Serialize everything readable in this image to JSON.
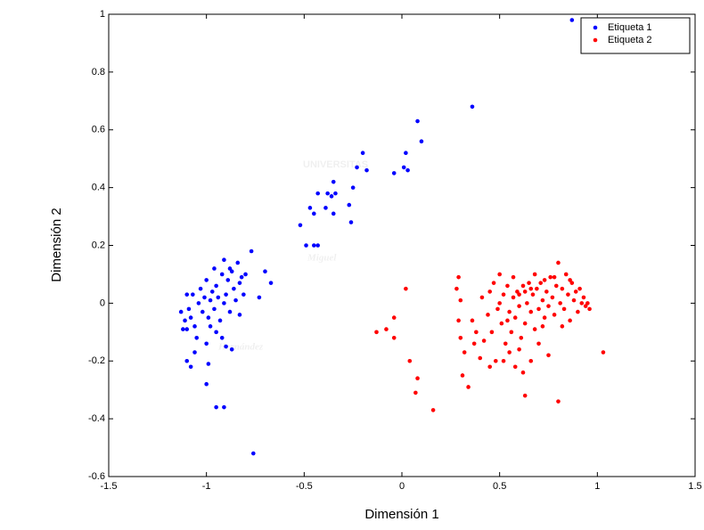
{
  "chart_data": {
    "type": "scatter",
    "xlabel": "Dimensión 1",
    "ylabel": "Dimensión 2",
    "watermark": [
      "UNIVERSITAS",
      "Miguel",
      "Hernández"
    ],
    "xlim": [
      -1.5,
      1.5
    ],
    "xticks": [
      -1.5,
      -1,
      -0.5,
      0,
      0.5,
      1,
      1.5
    ],
    "ylim": [
      -0.6,
      1
    ],
    "yticks": [
      -0.6,
      -0.4,
      -0.2,
      0,
      0.2,
      0.4,
      0.6,
      0.8,
      1
    ],
    "grid": false,
    "legend": "upper right",
    "series": [
      {
        "name": "Etiqueta 1",
        "color": "#0000ff",
        "x": [
          -1.13,
          -1.12,
          -1.11,
          -1.1,
          -1.09,
          -1.08,
          -1.07,
          -1.06,
          -1.05,
          -1.04,
          -1.03,
          -1.02,
          -1.01,
          -1.0,
          -0.99,
          -0.98,
          -0.97,
          -0.96,
          -0.95,
          -0.94,
          -0.93,
          -0.92,
          -0.91,
          -0.9,
          -0.89,
          -0.88,
          -0.87,
          -0.86,
          -0.85,
          -0.84,
          -0.83,
          -0.82,
          -0.81,
          -0.8,
          -1.06,
          -0.95,
          -0.92,
          -1.0,
          -0.98,
          -1.1,
          -0.96,
          -0.91,
          -0.88,
          -0.83,
          -0.9,
          -0.87,
          -0.99,
          -1.0,
          -1.08,
          -1.1,
          -0.95,
          -0.91,
          -0.76,
          -0.77,
          -0.7,
          -0.67,
          -0.73,
          -0.52,
          -0.49,
          -0.45,
          -0.43,
          -0.47,
          -0.45,
          -0.43,
          -0.39,
          -0.38,
          -0.36,
          -0.35,
          -0.34,
          -0.35,
          -0.27,
          -0.26,
          -0.25,
          -0.23,
          -0.2,
          -0.18,
          -0.04,
          0.01,
          0.02,
          0.03,
          0.08,
          0.1,
          0.36,
          0.87
        ],
        "values": [
          -0.03,
          -0.09,
          -0.06,
          -0.09,
          -0.02,
          -0.05,
          0.03,
          -0.08,
          -0.12,
          0.0,
          0.05,
          -0.03,
          0.02,
          0.08,
          -0.05,
          0.01,
          0.04,
          -0.02,
          0.06,
          0.02,
          -0.06,
          0.1,
          0.0,
          0.03,
          0.08,
          -0.03,
          0.11,
          0.05,
          0.01,
          0.14,
          0.07,
          0.09,
          0.03,
          0.1,
          -0.17,
          -0.1,
          -0.12,
          -0.14,
          -0.08,
          0.03,
          0.12,
          0.15,
          0.12,
          -0.04,
          -0.15,
          -0.16,
          -0.21,
          -0.28,
          -0.22,
          -0.2,
          -0.36,
          -0.36,
          -0.52,
          0.18,
          0.11,
          0.07,
          0.02,
          0.27,
          0.2,
          0.2,
          0.2,
          0.33,
          0.31,
          0.38,
          0.33,
          0.38,
          0.37,
          0.42,
          0.38,
          0.31,
          0.34,
          0.28,
          0.4,
          0.47,
          0.52,
          0.46,
          0.45,
          0.47,
          0.52,
          0.46,
          0.63,
          0.56,
          0.68,
          0.98
        ]
      },
      {
        "name": "Etiqueta 2",
        "color": "#ff0000",
        "x": [
          1.03,
          0.8,
          0.63,
          0.34,
          0.16,
          0.07,
          0.08,
          0.04,
          -0.08,
          -0.13,
          -0.04,
          -0.04,
          0.02,
          0.29,
          0.28,
          0.3,
          0.29,
          0.3,
          0.32,
          0.31,
          0.36,
          0.38,
          0.4,
          0.42,
          0.44,
          0.45,
          0.46,
          0.47,
          0.48,
          0.49,
          0.5,
          0.51,
          0.52,
          0.53,
          0.54,
          0.55,
          0.56,
          0.57,
          0.58,
          0.59,
          0.6,
          0.61,
          0.62,
          0.63,
          0.64,
          0.65,
          0.66,
          0.67,
          0.68,
          0.69,
          0.7,
          0.71,
          0.72,
          0.73,
          0.74,
          0.75,
          0.76,
          0.77,
          0.78,
          0.79,
          0.8,
          0.81,
          0.82,
          0.83,
          0.84,
          0.85,
          0.86,
          0.87,
          0.88,
          0.89,
          0.9,
          0.91,
          0.92,
          0.93,
          0.94,
          0.95,
          0.96,
          0.55,
          0.58,
          0.6,
          0.66,
          0.7,
          0.75,
          0.52,
          0.57,
          0.62,
          0.68,
          0.72,
          0.78,
          0.45,
          0.5,
          0.41,
          0.37,
          0.66,
          0.54,
          0.6,
          0.73,
          0.63,
          0.82,
          0.86
        ],
        "values": [
          -0.17,
          -0.34,
          -0.32,
          -0.29,
          -0.37,
          -0.31,
          -0.26,
          -0.2,
          -0.09,
          -0.1,
          -0.12,
          -0.05,
          0.05,
          0.09,
          0.05,
          0.01,
          -0.06,
          -0.12,
          -0.17,
          -0.25,
          -0.06,
          -0.1,
          -0.19,
          -0.13,
          -0.04,
          0.04,
          -0.1,
          0.07,
          -0.2,
          -0.02,
          0.0,
          -0.07,
          0.03,
          -0.14,
          0.06,
          -0.03,
          -0.1,
          0.02,
          -0.05,
          0.04,
          -0.01,
          -0.12,
          0.06,
          -0.07,
          0.0,
          0.07,
          -0.03,
          0.03,
          -0.09,
          0.05,
          -0.02,
          0.07,
          0.01,
          -0.05,
          0.04,
          -0.01,
          0.09,
          0.02,
          -0.04,
          0.06,
          0.14,
          0.0,
          0.05,
          -0.02,
          0.1,
          0.03,
          -0.06,
          0.07,
          0.01,
          0.04,
          -0.03,
          0.05,
          0.0,
          0.02,
          -0.01,
          0.0,
          -0.02,
          -0.17,
          -0.22,
          -0.16,
          -0.2,
          -0.14,
          -0.18,
          -0.2,
          0.09,
          -0.24,
          0.1,
          -0.08,
          0.09,
          -0.22,
          0.1,
          0.02,
          -0.14,
          0.05,
          -0.06,
          0.03,
          0.08,
          0.04,
          -0.08,
          0.08
        ]
      }
    ]
  }
}
